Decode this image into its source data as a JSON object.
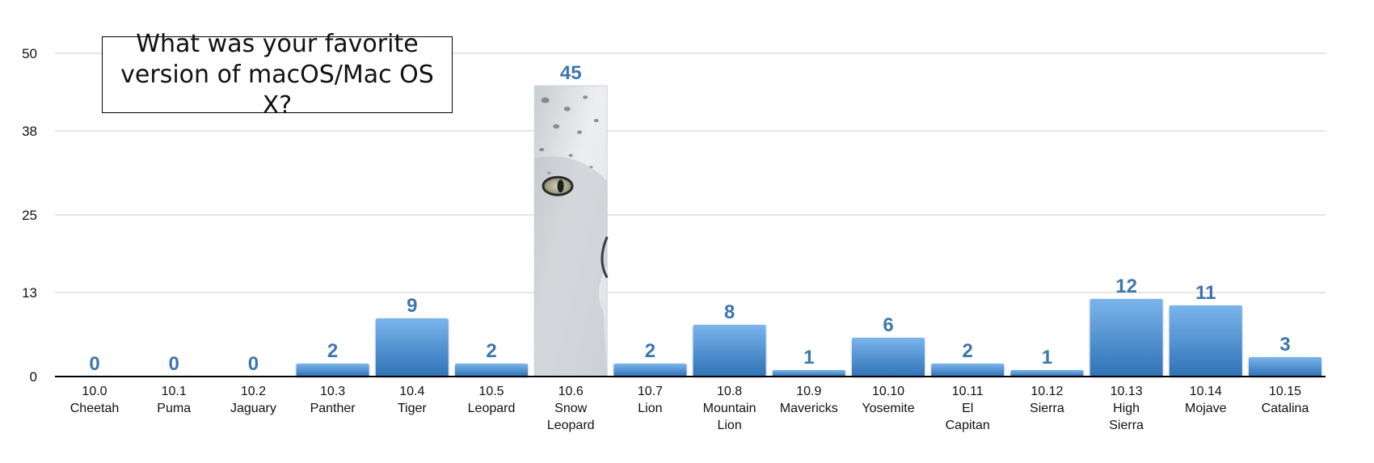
{
  "chart_data": {
    "type": "bar",
    "title": "What was your favorite version of macOS/Mac OS X?",
    "categories": [
      [
        "10.0",
        "Cheetah"
      ],
      [
        "10.1",
        "Puma"
      ],
      [
        "10.2",
        "Jaguary"
      ],
      [
        "10.3",
        "Panther"
      ],
      [
        "10.4",
        "Tiger"
      ],
      [
        "10.5",
        "Leopard"
      ],
      [
        "10.6",
        "Snow",
        "Leopard"
      ],
      [
        "10.7",
        "Lion"
      ],
      [
        "10.8",
        "Mountain",
        "Lion"
      ],
      [
        "10.9",
        "Mavericks"
      ],
      [
        "10.10",
        "Yosemite"
      ],
      [
        "10.11",
        "El",
        "Capitan"
      ],
      [
        "10.12",
        "Sierra"
      ],
      [
        "10.13",
        "High",
        "Sierra"
      ],
      [
        "10.14",
        "Mojave"
      ],
      [
        "10.15",
        "Catalina"
      ]
    ],
    "values": [
      0,
      0,
      0,
      2,
      9,
      2,
      45,
      2,
      8,
      1,
      6,
      2,
      1,
      12,
      11,
      3
    ],
    "data_labels": [
      "0",
      "0",
      "0",
      "2",
      "9",
      "2",
      "45",
      "2",
      "8",
      "1",
      "6",
      "2",
      "1",
      "12",
      "11",
      "3"
    ],
    "yticks": [
      "0",
      "13",
      "25",
      "38",
      "50"
    ],
    "ylim": [
      0,
      50
    ],
    "xlabel": "",
    "ylabel": "",
    "grid": true,
    "legend": "none",
    "highlight_category_index": 6,
    "highlight_fill": "snow-leopard-photo",
    "colors": {
      "bar_top": "#7ab4ec",
      "bar_bottom": "#2f72b6",
      "label": "#3d76ad",
      "grid": "#cccccc",
      "axis": "#000000"
    }
  }
}
